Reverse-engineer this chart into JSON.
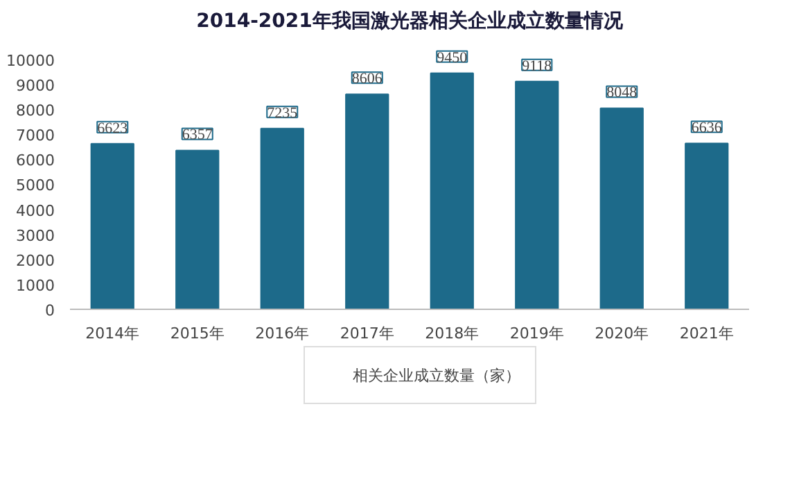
{
  "chart_data": {
    "type": "bar",
    "title": "2014-2021年我国激光器相关企业成立数量情况",
    "categories": [
      "2014年",
      "2015年",
      "2016年",
      "2017年",
      "2018年",
      "2019年",
      "2020年",
      "2021年"
    ],
    "series": [
      {
        "name": "相关企业成立数量（家）",
        "color": "#1d6a8a",
        "values": [
          6623,
          6357,
          7235,
          8606,
          9450,
          9118,
          8048,
          6636
        ]
      }
    ],
    "ylim": [
      0,
      10000
    ],
    "yticks": [
      0,
      1000,
      2000,
      3000,
      4000,
      5000,
      6000,
      7000,
      8000,
      9000,
      10000
    ],
    "data_labels": true,
    "grid": false,
    "legend": "bottom"
  }
}
